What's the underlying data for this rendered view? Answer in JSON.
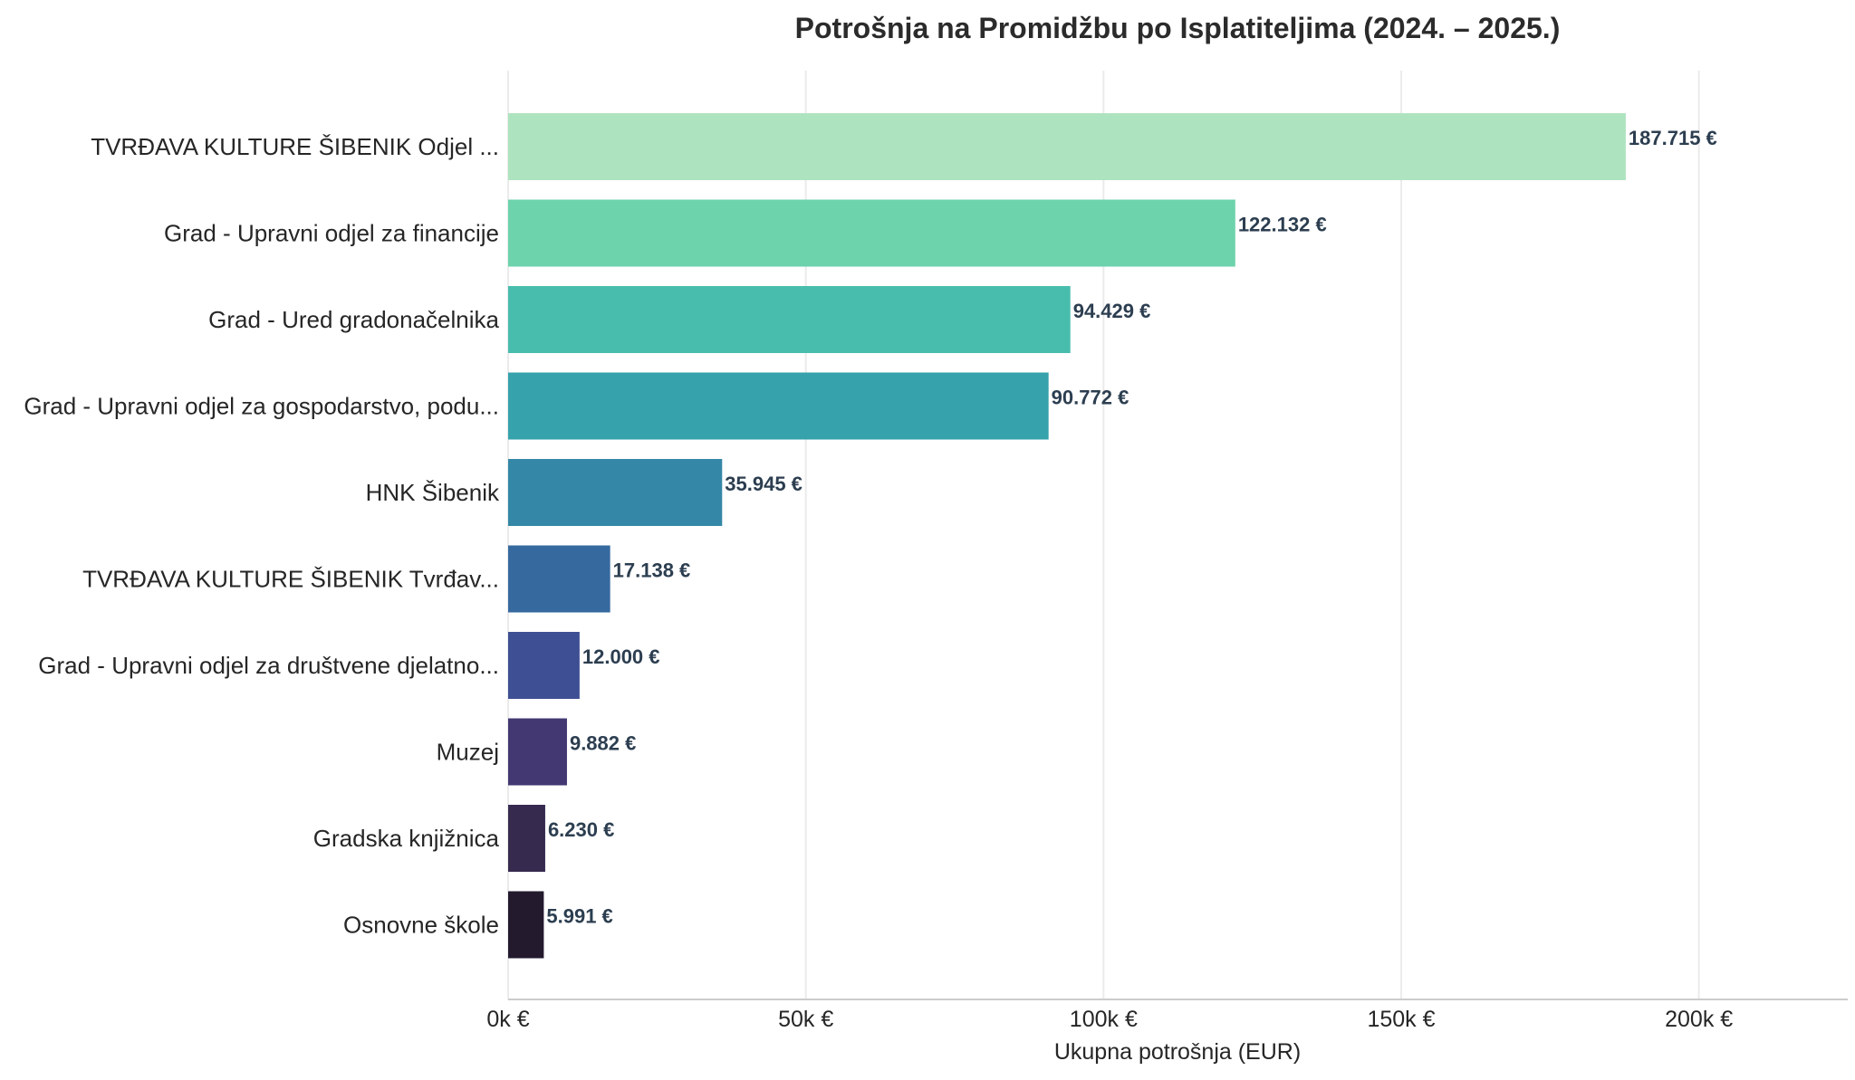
{
  "chart_data": {
    "type": "bar",
    "orientation": "horizontal",
    "title": "Potrošnja na Promidžbu po Isplatiteljima (2024. – 2025.)",
    "xlabel": "Ukupna potrošnja (EUR)",
    "ylabel": "",
    "xlim": [
      0,
      225000
    ],
    "xticks": [
      0,
      50000,
      100000,
      150000,
      200000
    ],
    "xtick_labels": [
      "0k €",
      "50k €",
      "100k €",
      "150k €",
      "200k €"
    ],
    "grid": "vertical",
    "categories": [
      "TVRĐAVA KULTURE ŠIBENIK Odjel ...",
      "Grad - Upravni odjel za financije",
      "Grad - Ured gradonačelnika",
      "Grad - Upravni odjel za gospodarstvo, podu...",
      "HNK Šibenik",
      "TVRĐAVA KULTURE ŠIBENIK Tvrđav...",
      "Grad - Upravni odjel za društvene djelatno...",
      "Muzej",
      "Gradska knjižnica",
      "Osnovne škole"
    ],
    "values": [
      187715,
      122132,
      94429,
      90772,
      35945,
      17138,
      12000,
      9882,
      6230,
      5991
    ],
    "value_labels": [
      "187.715 €",
      "122.132 €",
      "94.429 €",
      "90.772 €",
      "35.945 €",
      "17.138 €",
      "12.000 €",
      "9.882 €",
      "6.230 €",
      "5.991 €"
    ],
    "colors": [
      "#aee3c0",
      "#6dd3ac",
      "#48bdad",
      "#36a2ab",
      "#3487a6",
      "#366a9f",
      "#3e4f93",
      "#433872",
      "#372a4f",
      "#231a2e"
    ]
  }
}
